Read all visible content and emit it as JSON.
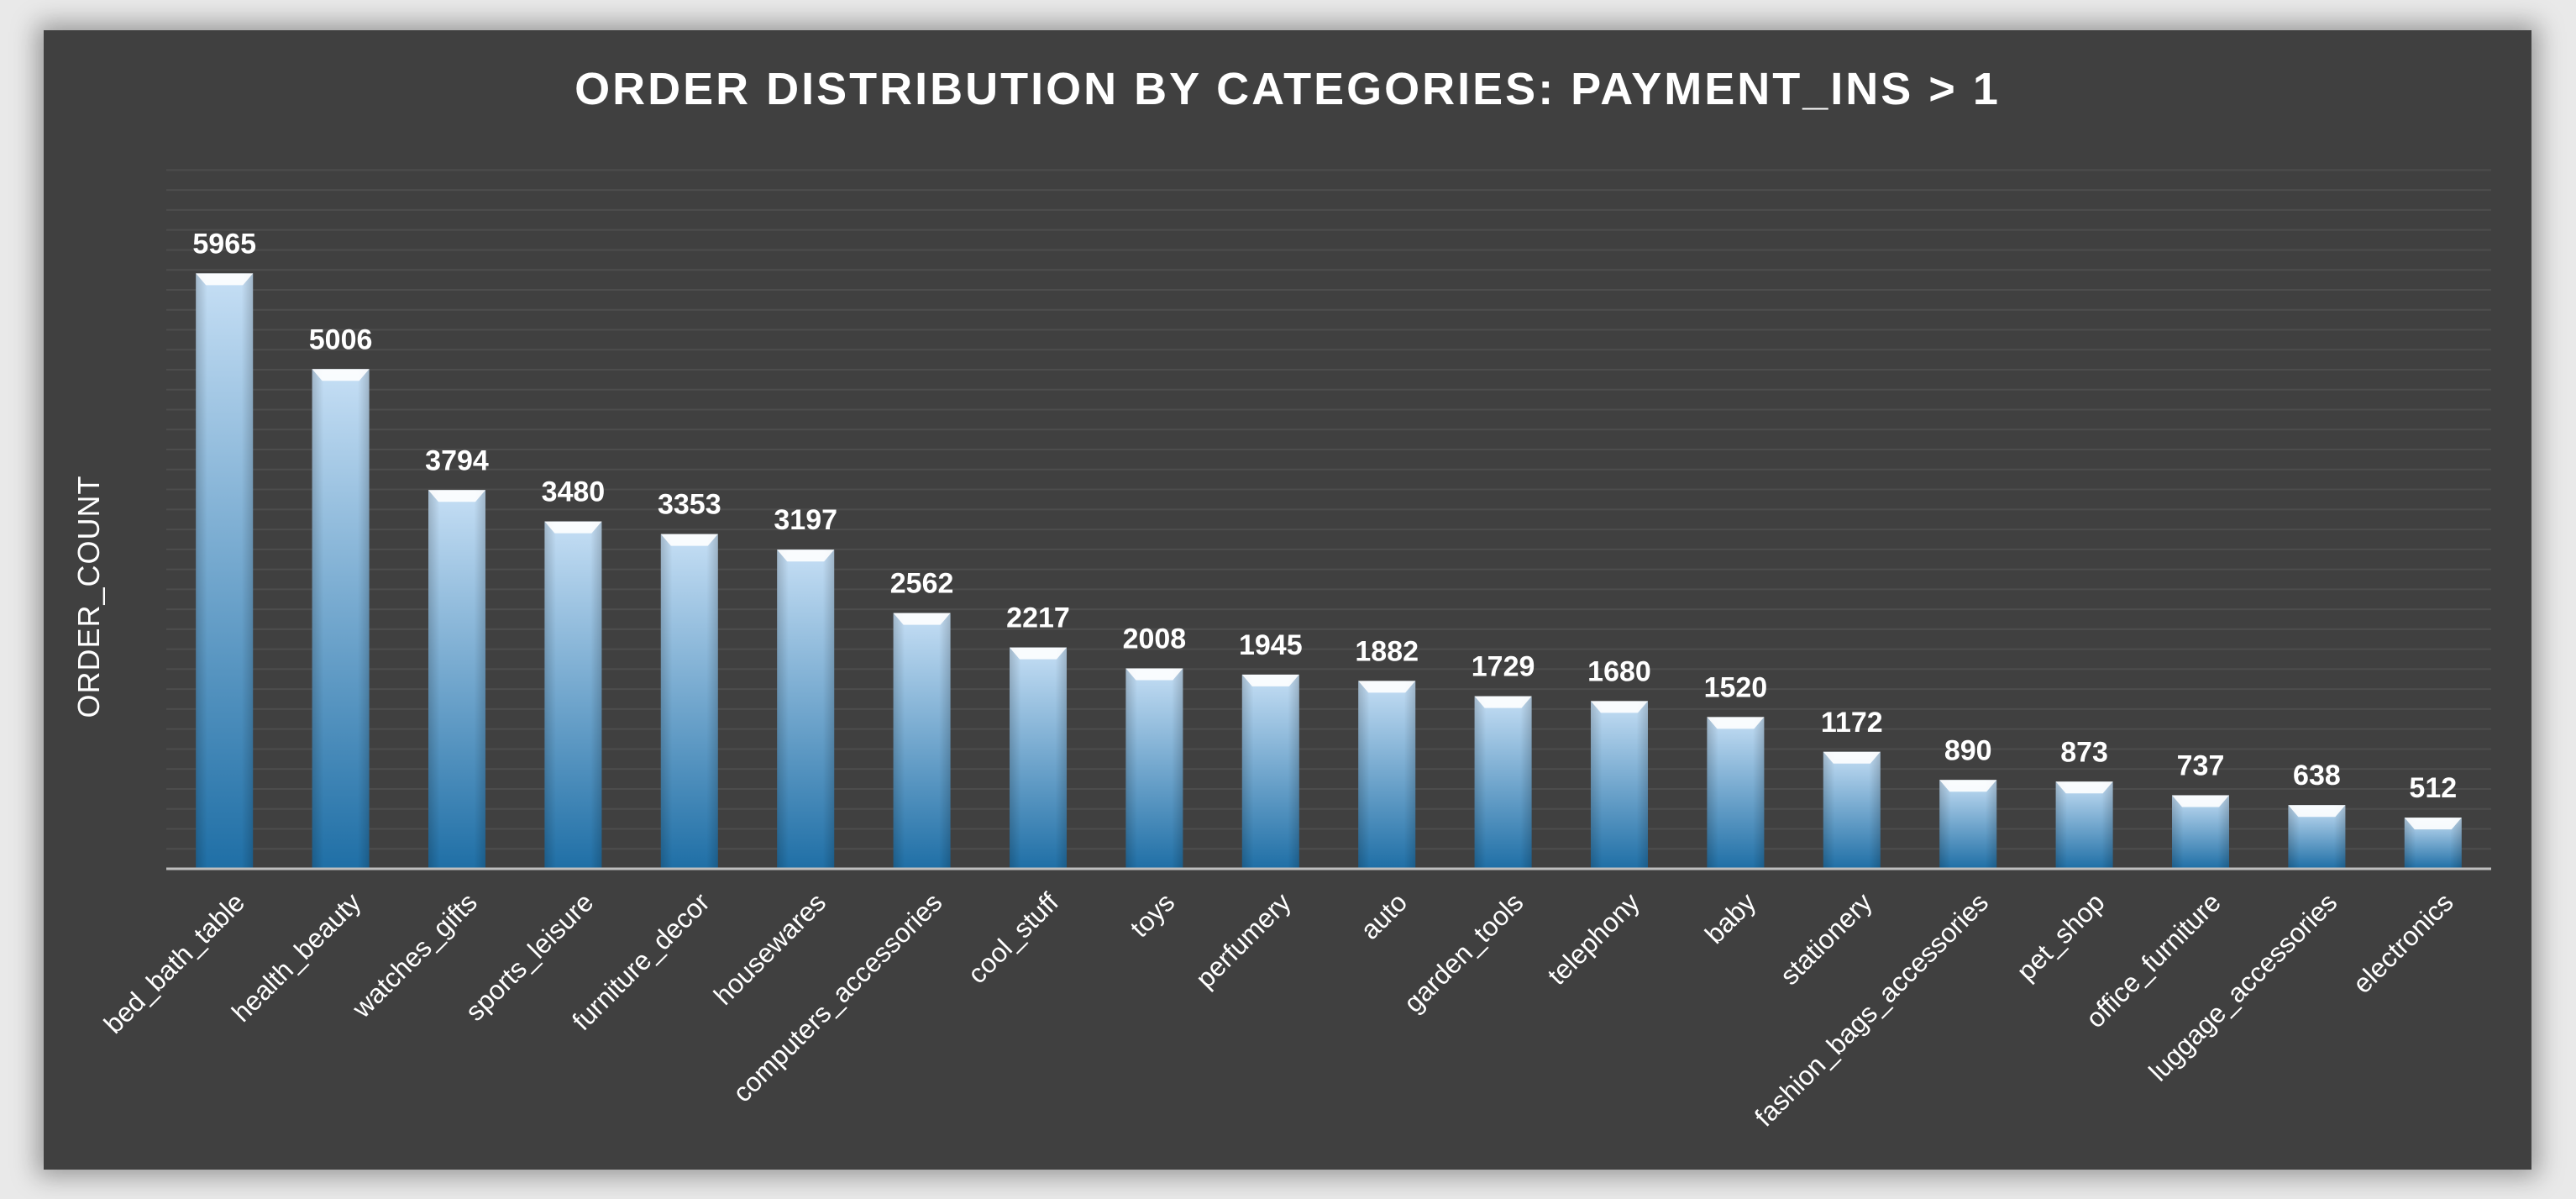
{
  "chart_data": {
    "type": "bar",
    "title": "ORDER DISTRIBUTION BY CATEGORIES: PAYMENT_INS > 1",
    "xlabel": "",
    "ylabel": "ORDER_COUNT",
    "ylim": [
      0,
      7000
    ],
    "grid": true,
    "legend": "none",
    "categories": [
      "bed_bath_table",
      "health_beauty",
      "watches_gifts",
      "sports_leisure",
      "furniture_decor",
      "housewares",
      "computers_accessories",
      "cool_stuff",
      "toys",
      "perfumery",
      "auto",
      "garden_tools",
      "telephony",
      "baby",
      "stationery",
      "fashion_bags_accessories",
      "pet_shop",
      "office_furniture",
      "luggage_accessories",
      "electronics"
    ],
    "values": [
      5965,
      5006,
      3794,
      3480,
      3353,
      3197,
      2562,
      2217,
      2008,
      1945,
      1882,
      1729,
      1680,
      1520,
      1172,
      890,
      873,
      737,
      638,
      512
    ],
    "colors": {
      "bar_top": "#c6dff5",
      "bar_bottom": "#1f6fa6",
      "cap": "#ffffff",
      "background": "#404040",
      "gridline": "#4d4d4d",
      "axis": "#bfbfbf"
    }
  }
}
